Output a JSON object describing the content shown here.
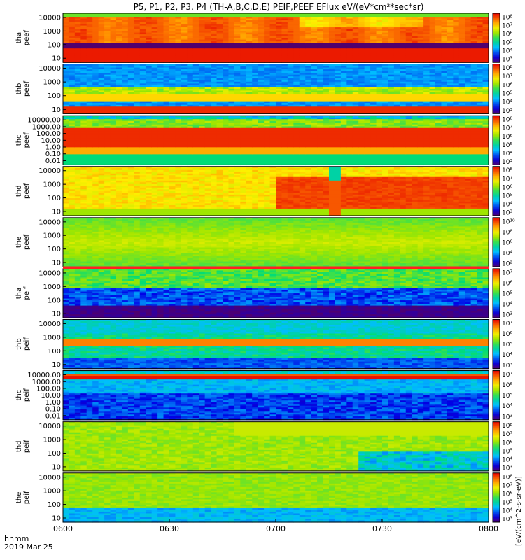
{
  "chart_data": {
    "type": "heatmap",
    "title": "P5, P1, P2, P3, P4 (TH-A,B,C,D,E) PEIF,PEEF EFlux eV/(eV*cm²*sec*sr)",
    "x_ticks": [
      "0600",
      "0630",
      "0700",
      "0730",
      "0800"
    ],
    "x_range": [
      "06:00",
      "08:00"
    ],
    "x_corner_label": "hhmm",
    "date_label": "2019 Mar 25",
    "colorbar_label": "[eV/(cm^2-s-sr-eV)]",
    "colormap": "rainbow",
    "panels": [
      {
        "probe": "tha",
        "product": "peef",
        "yticks": [
          "10000",
          "1000",
          "100",
          "10"
        ],
        "cbar": [
          "10⁸",
          "10⁷",
          "10⁶",
          "10⁵",
          "10⁴",
          "10³"
        ],
        "pattern": "tha_peef"
      },
      {
        "probe": "thb",
        "product": "peef",
        "yticks": [
          "10000",
          "1000",
          "100",
          "10"
        ],
        "cbar": [
          "10⁸",
          "10⁷",
          "10⁶",
          "10⁵",
          "10⁴",
          "10³"
        ],
        "pattern": "thb_peef"
      },
      {
        "probe": "thc",
        "product": "peef",
        "yticks": [
          "10000.00",
          "1000.00",
          "100.00",
          "10.00",
          "1.00",
          "0.10",
          "0.01"
        ],
        "cbar": [
          "10⁸",
          "10⁷",
          "10⁶",
          "10⁵",
          "10⁴",
          "10³"
        ],
        "pattern": "thc_peef"
      },
      {
        "probe": "thd",
        "product": "peef",
        "yticks": [
          "10000",
          "1000",
          "100",
          "10"
        ],
        "cbar": [
          "10⁸",
          "10⁷",
          "10⁶",
          "10⁵",
          "10⁴",
          "10³"
        ],
        "pattern": "thd_peef"
      },
      {
        "probe": "the",
        "product": "peef",
        "yticks": [
          "10000",
          "1000",
          "100",
          "10"
        ],
        "cbar": [
          "10¹⁰",
          "10⁸",
          "10⁶",
          "10⁴",
          "10²"
        ],
        "pattern": "the_peef"
      },
      {
        "probe": "tha",
        "product": "peif",
        "yticks": [
          "10000",
          "1000",
          "100",
          "10"
        ],
        "cbar": [
          "10⁷",
          "10⁶",
          "10⁵",
          "10⁴",
          "10³"
        ],
        "pattern": "tha_peif"
      },
      {
        "probe": "thb",
        "product": "peif",
        "yticks": [
          "10000",
          "1000",
          "100",
          "10"
        ],
        "cbar": [
          "10⁷",
          "10⁶",
          "10⁵",
          "10⁴",
          "10³"
        ],
        "pattern": "thb_peif"
      },
      {
        "probe": "thc",
        "product": "peif",
        "yticks": [
          "10000.00",
          "1000.00",
          "100.00",
          "10.00",
          "1.00",
          "0.10",
          "0.01"
        ],
        "cbar": [
          "10⁷",
          "10⁶",
          "10⁵",
          "10⁴",
          "10³"
        ],
        "pattern": "thc_peif"
      },
      {
        "probe": "thd",
        "product": "peif",
        "yticks": [
          "10000",
          "1000",
          "100",
          "10"
        ],
        "cbar": [
          "10⁸",
          "10⁷",
          "10⁶",
          "10⁵",
          "10⁴",
          "10³"
        ],
        "pattern": "thd_peif"
      },
      {
        "probe": "the",
        "product": "peif",
        "yticks": [
          "10000",
          "1000",
          "100",
          "10"
        ],
        "cbar": [
          "10⁸",
          "10⁷",
          "10⁶",
          "10⁵",
          "10⁴",
          "10³"
        ],
        "pattern": "the_peif"
      }
    ]
  }
}
